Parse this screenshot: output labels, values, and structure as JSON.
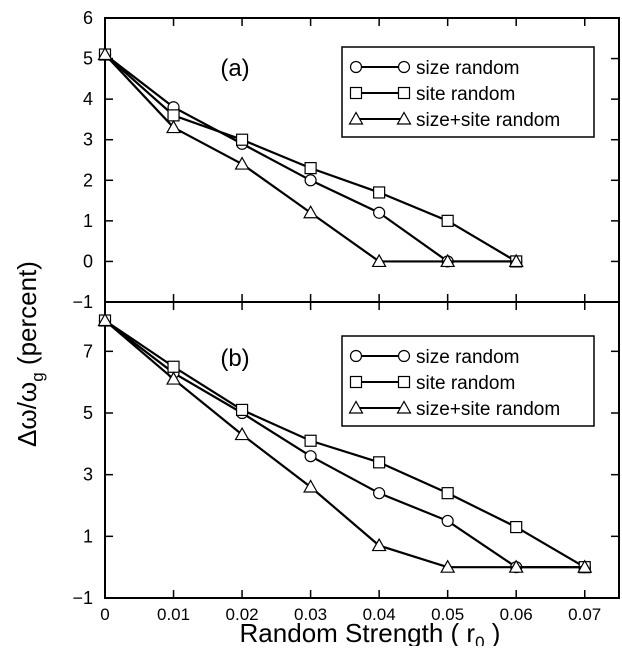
{
  "chart_data": [
    {
      "type": "line",
      "panel_label": "(a)",
      "ylabel": "Δω/ω_g (percent)",
      "ylim": [
        -1,
        6
      ],
      "yticks": [
        -1,
        0,
        1,
        2,
        3,
        4,
        5,
        6
      ],
      "xlim": [
        0,
        0.075
      ],
      "grid": false,
      "legend_position": "top-right",
      "series": [
        {
          "name": "size random",
          "marker": "circle",
          "x": [
            0,
            0.01,
            0.02,
            0.03,
            0.04,
            0.05,
            0.06
          ],
          "y": [
            5.1,
            3.8,
            2.9,
            2.0,
            1.2,
            0.0,
            0.0
          ]
        },
        {
          "name": "site random",
          "marker": "square",
          "x": [
            0,
            0.01,
            0.02,
            0.03,
            0.04,
            0.05,
            0.06
          ],
          "y": [
            5.1,
            3.6,
            3.0,
            2.3,
            1.7,
            1.0,
            0.0
          ]
        },
        {
          "name": "size+site random",
          "marker": "triangle",
          "x": [
            0,
            0.01,
            0.02,
            0.03,
            0.04,
            0.05,
            0.06
          ],
          "y": [
            5.1,
            3.3,
            2.4,
            1.2,
            0.0,
            0.0,
            0.0
          ]
        }
      ]
    },
    {
      "type": "line",
      "panel_label": "(b)",
      "ylabel": "Δω/ω_g (percent)",
      "xlabel": "Random Strength ( r0 )",
      "ylim": [
        -1,
        8.6
      ],
      "yticks": [
        -1,
        1,
        3,
        5,
        7
      ],
      "xlim": [
        0,
        0.075
      ],
      "xticks": [
        0,
        0.01,
        0.02,
        0.03,
        0.04,
        0.05,
        0.06,
        0.07
      ],
      "grid": false,
      "legend_position": "top-right",
      "series": [
        {
          "name": "size random",
          "marker": "circle",
          "x": [
            0,
            0.01,
            0.02,
            0.03,
            0.04,
            0.05,
            0.06,
            0.07
          ],
          "y": [
            8.0,
            6.3,
            5.0,
            3.6,
            2.4,
            1.5,
            0.0,
            0.0
          ]
        },
        {
          "name": "site random",
          "marker": "square",
          "x": [
            0,
            0.01,
            0.02,
            0.03,
            0.04,
            0.05,
            0.06,
            0.07
          ],
          "y": [
            8.0,
            6.5,
            5.1,
            4.1,
            3.4,
            2.4,
            1.3,
            0.0
          ]
        },
        {
          "name": "size+site random",
          "marker": "triangle",
          "x": [
            0,
            0.01,
            0.02,
            0.03,
            0.04,
            0.05,
            0.06,
            0.07
          ],
          "y": [
            8.0,
            6.1,
            4.3,
            2.6,
            0.7,
            0.0,
            0.0,
            0.0
          ]
        }
      ]
    }
  ]
}
